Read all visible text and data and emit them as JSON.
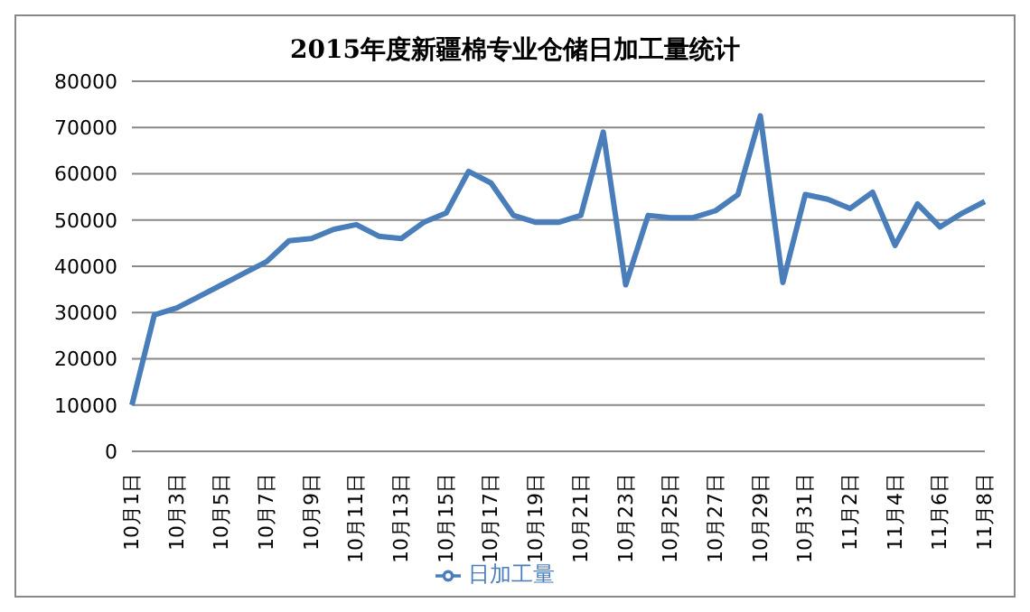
{
  "chart_data": {
    "type": "line",
    "title": "2015年度新疆棉专业仓储日加工量统计",
    "categories": [
      "10月1日",
      null,
      "10月3日",
      null,
      "10月5日",
      null,
      "10月7日",
      null,
      "10月9日",
      null,
      "10月11日",
      null,
      "10月13日",
      null,
      "10月15日",
      null,
      "10月17日",
      null,
      "10月19日",
      null,
      "10月21日",
      null,
      "10月23日",
      null,
      "10月25日",
      null,
      "10月27日",
      null,
      "10月29日",
      null,
      "10月31日",
      null,
      "11月2日",
      null,
      "11月4日",
      null,
      "11月6日",
      null,
      "11月8日"
    ],
    "series": [
      {
        "name": "日加工量",
        "color": "#4a7ebb",
        "values": [
          10000,
          29500,
          31000,
          33500,
          36000,
          38500,
          41000,
          45500,
          46000,
          48000,
          49000,
          46500,
          46000,
          49500,
          51500,
          60500,
          58000,
          51000,
          49500,
          49500,
          51000,
          69000,
          36000,
          51000,
          50500,
          50500,
          52000,
          55500,
          72500,
          36500,
          55500,
          54500,
          52500,
          56000,
          44500,
          53500,
          48500,
          51500,
          54000
        ]
      }
    ],
    "ylim": [
      0,
      80000
    ],
    "yticks": [
      0,
      10000,
      20000,
      30000,
      40000,
      50000,
      60000,
      70000,
      80000
    ],
    "grid": "y",
    "legend": "bottom",
    "marker": "none",
    "line_style": "solid"
  }
}
